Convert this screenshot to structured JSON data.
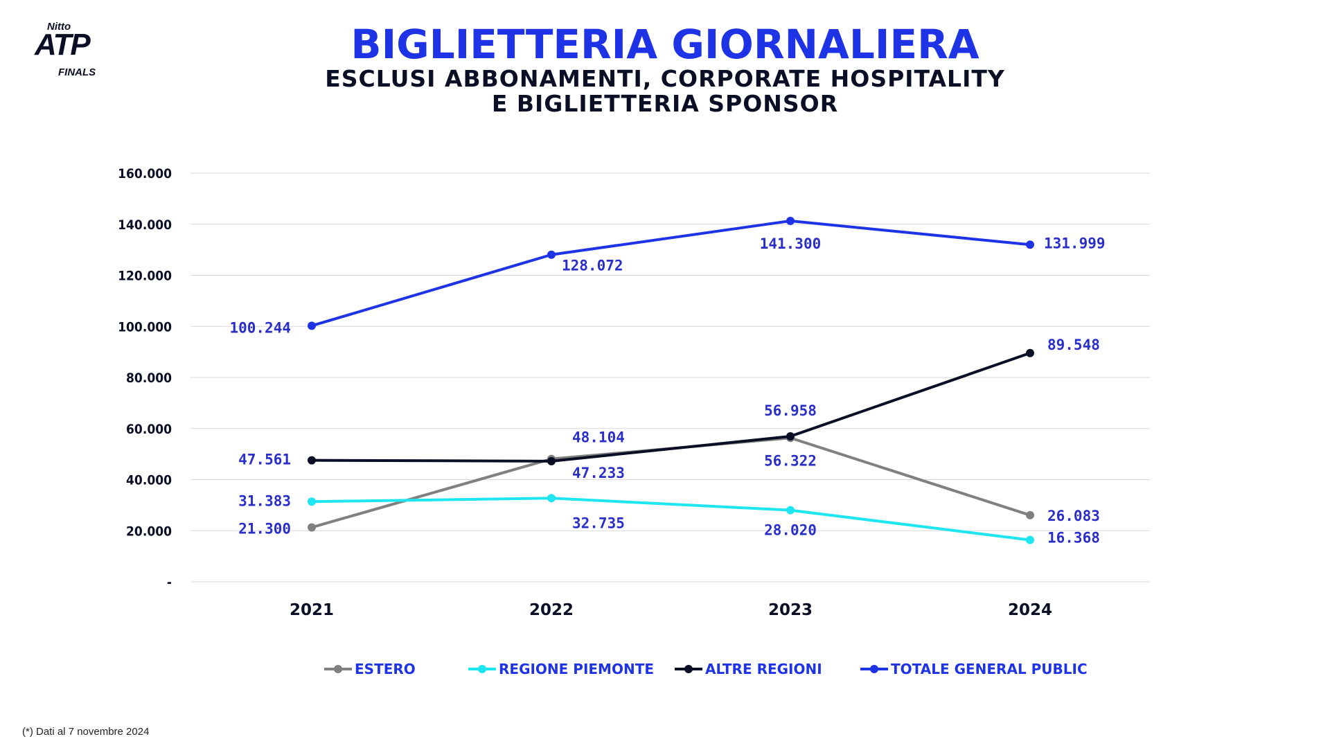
{
  "logo": {
    "line1": "Nitto",
    "line2": "ATP",
    "line3": "FINALS"
  },
  "header": {
    "title": "BIGLIETTERIA GIORNALIERA",
    "subtitle_line1": "ESCLUSI ABBONAMENTI, CORPORATE HOSPITALITY",
    "subtitle_line2": "E BIGLIETTERIA SPONSOR"
  },
  "chart_data": {
    "type": "line",
    "categories": [
      "2021",
      "2022",
      "2023",
      "2024"
    ],
    "ylim": [
      0,
      160000
    ],
    "yticks": [
      0,
      20000,
      40000,
      60000,
      80000,
      100000,
      120000,
      140000,
      160000
    ],
    "ytick_labels": [
      "-",
      "20.000",
      "40.000",
      "60.000",
      "80.000",
      "100.000",
      "120.000",
      "140.000",
      "160.000"
    ],
    "grid": true,
    "legend_position": "bottom",
    "series": [
      {
        "name": "ESTERO",
        "color": "#808080",
        "values": [
          21300,
          48104,
          56322,
          26083
        ],
        "labels": [
          "21.300",
          "48.104",
          "56.322",
          "26.083"
        ]
      },
      {
        "name": "REGIONE PIEMONTE",
        "color": "#1ee6f0",
        "values": [
          31383,
          32735,
          28020,
          16368
        ],
        "labels": [
          "31.383",
          "32.735",
          "28.020",
          "16.368"
        ]
      },
      {
        "name": "ALTRE REGIONI",
        "color": "#0b0f26",
        "values": [
          47561,
          47233,
          56958,
          89548
        ],
        "labels": [
          "47.561",
          "47.233",
          "56.958",
          "89.548"
        ]
      },
      {
        "name": "TOTALE GENERAL PUBLIC",
        "color": "#1f33e6",
        "values": [
          100244,
          128072,
          141300,
          131999
        ],
        "labels": [
          "100.244",
          "128.072",
          "141.300",
          "131.999"
        ]
      }
    ]
  },
  "footnote": "(*) Dati al 7 novembre 2024"
}
